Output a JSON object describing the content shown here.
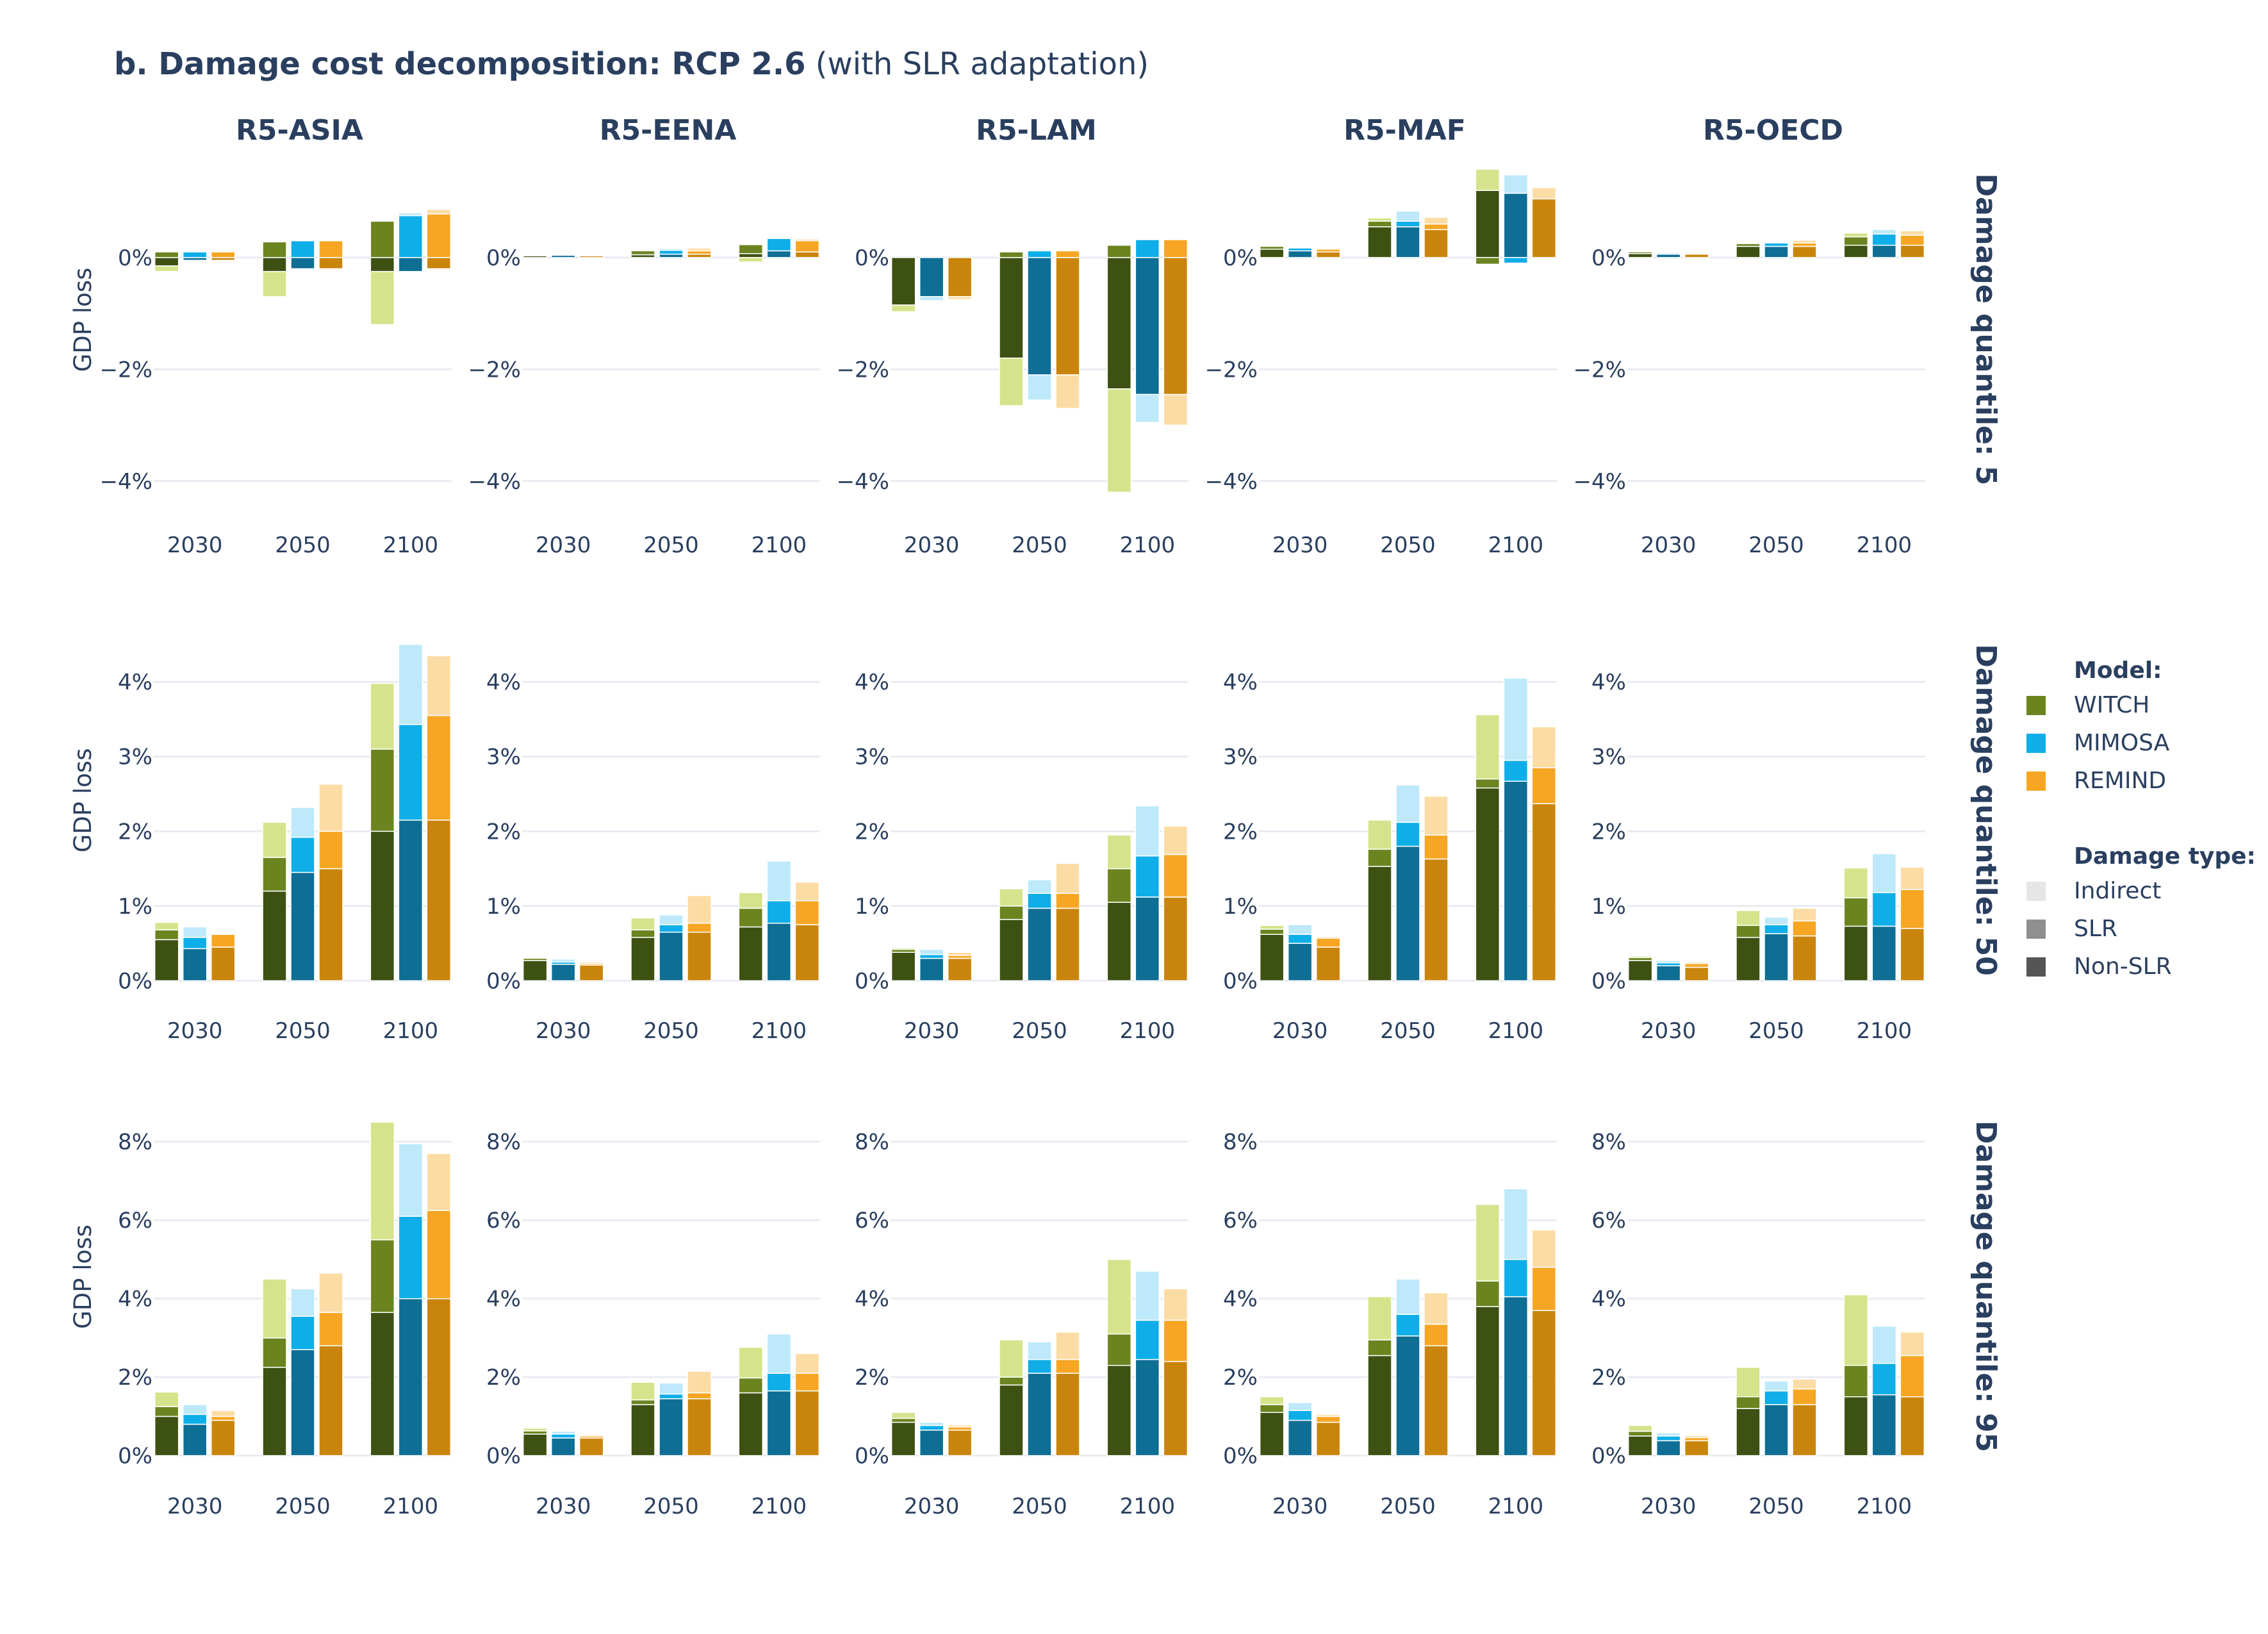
{
  "title": {
    "bold": "b. Damage cost decomposition: RCP 2.6",
    "rest": " (with SLR adaptation)"
  },
  "colors": {
    "WITCH": [
      "#3d5113",
      "#6b8420",
      "#d5e48c"
    ],
    "MIMOSA": [
      "#0e6e94",
      "#0eaee8",
      "#bde9fa"
    ],
    "REMIND": [
      "#c9850b",
      "#f6a623",
      "#fcdca5"
    ],
    "grid": "#e8ecf2",
    "text": "#2a3f5f",
    "legend_type": [
      "#e6e6e6",
      "#8f8f8f",
      "#555555"
    ]
  },
  "legend": {
    "model_title": "Model:",
    "models": [
      "WITCH",
      "MIMOSA",
      "REMIND"
    ],
    "type_title": "Damage type:",
    "types": [
      "Indirect",
      "SLR",
      "Non-SLR"
    ]
  },
  "chart_data": {
    "type": "bar",
    "stacked": true,
    "regions": [
      "R5-ASIA",
      "R5-EENA",
      "R5-LAM",
      "R5-MAF",
      "R5-OECD"
    ],
    "years": [
      "2030",
      "2050",
      "2100"
    ],
    "models": [
      "WITCH",
      "MIMOSA",
      "REMIND"
    ],
    "damage_types": [
      "Non-SLR",
      "SLR",
      "Indirect"
    ],
    "ylabel": "GDP loss",
    "rows": [
      {
        "label": "Damage quantile: 5",
        "yticks": [
          -4,
          -2,
          0
        ],
        "ylim": [
          -4.45,
          1.65
        ],
        "values": {
          "R5-ASIA": [
            [
              [
                -0.15,
                0.1,
                -0.1
              ],
              [
                -0.05,
                0.1,
                0
              ],
              [
                -0.05,
                0.1,
                0
              ]
            ],
            [
              [
                -0.25,
                0.28,
                -0.45
              ],
              [
                -0.2,
                0.3,
                0
              ],
              [
                -0.2,
                0.3,
                0
              ]
            ],
            [
              [
                -0.25,
                0.65,
                -0.95
              ],
              [
                -0.25,
                0.75,
                0.05
              ],
              [
                -0.2,
                0.78,
                0.08
              ]
            ]
          ],
          "R5-EENA": [
            [
              [
                0.03,
                0,
                0
              ],
              [
                0.04,
                0,
                0
              ],
              [
                0.03,
                0,
                0
              ]
            ],
            [
              [
                0.05,
                0.07,
                0
              ],
              [
                0.06,
                0.07,
                0.03
              ],
              [
                0.06,
                0.06,
                0.05
              ]
            ],
            [
              [
                0.07,
                0.16,
                -0.08
              ],
              [
                0.12,
                0.22,
                0
              ],
              [
                0.1,
                0.2,
                0.03
              ]
            ]
          ],
          "R5-LAM": [
            [
              [
                -0.85,
                0,
                -0.12
              ],
              [
                -0.7,
                0,
                -0.07
              ],
              [
                -0.7,
                0,
                -0.05
              ]
            ],
            [
              [
                -1.8,
                0.1,
                -0.85
              ],
              [
                -2.1,
                0.12,
                -0.45
              ],
              [
                -2.1,
                0.12,
                -0.6
              ]
            ],
            [
              [
                -2.35,
                0.22,
                -1.85
              ],
              [
                -2.45,
                0.32,
                -0.5
              ],
              [
                -2.45,
                0.32,
                -0.55
              ]
            ]
          ],
          "R5-MAF": [
            [
              [
                0.15,
                0.05,
                0
              ],
              [
                0.12,
                0.05,
                0
              ],
              [
                0.1,
                0.05,
                0.02
              ]
            ],
            [
              [
                0.55,
                0.1,
                0.06
              ],
              [
                0.55,
                0.1,
                0.18
              ],
              [
                0.5,
                0.1,
                0.12
              ]
            ],
            [
              [
                1.2,
                -0.12,
                0.38
              ],
              [
                1.15,
                -0.1,
                0.33
              ],
              [
                1.05,
                0,
                0.2
              ]
            ]
          ],
          "R5-OECD": [
            [
              [
                0.07,
                0.03,
                0
              ],
              [
                0.06,
                0.02,
                0
              ],
              [
                0.06,
                0.02,
                0.01
              ]
            ],
            [
              [
                0.2,
                0.05,
                0.02
              ],
              [
                0.2,
                0.06,
                0
              ],
              [
                0.2,
                0.06,
                0.05
              ]
            ],
            [
              [
                0.22,
                0.15,
                0.07
              ],
              [
                0.22,
                0.2,
                0.08
              ],
              [
                0.22,
                0.18,
                0.08
              ]
            ]
          ]
        }
      },
      {
        "label": "Damage quantile: 50",
        "yticks": [
          0,
          1,
          2,
          3,
          4
        ],
        "ylim": [
          -0.15,
          4.55
        ],
        "values": {
          "R5-ASIA": [
            [
              [
                0.55,
                0.13,
                0.1
              ],
              [
                0.43,
                0.15,
                0.14
              ],
              [
                0.45,
                0.17,
                0
              ]
            ],
            [
              [
                1.2,
                0.45,
                0.47
              ],
              [
                1.45,
                0.47,
                0.4
              ],
              [
                1.5,
                0.5,
                0.63
              ]
            ],
            [
              [
                2.0,
                1.1,
                0.88
              ],
              [
                2.15,
                1.28,
                1.07
              ],
              [
                2.15,
                1.4,
                0.8
              ]
            ]
          ],
          "R5-EENA": [
            [
              [
                0.27,
                0.03,
                0
              ],
              [
                0.22,
                0.03,
                0.04
              ],
              [
                0.21,
                0.02,
                0.02
              ]
            ],
            [
              [
                0.58,
                0.1,
                0.16
              ],
              [
                0.65,
                0.1,
                0.13
              ],
              [
                0.65,
                0.12,
                0.37
              ]
            ],
            [
              [
                0.72,
                0.25,
                0.21
              ],
              [
                0.77,
                0.3,
                0.53
              ],
              [
                0.75,
                0.32,
                0.25
              ]
            ]
          ],
          "R5-LAM": [
            [
              [
                0.38,
                0.04,
                0.02
              ],
              [
                0.3,
                0.05,
                0.07
              ],
              [
                0.3,
                0.04,
                0.04
              ]
            ],
            [
              [
                0.82,
                0.18,
                0.23
              ],
              [
                0.97,
                0.2,
                0.18
              ],
              [
                0.97,
                0.2,
                0.4
              ]
            ],
            [
              [
                1.05,
                0.45,
                0.45
              ],
              [
                1.12,
                0.55,
                0.67
              ],
              [
                1.12,
                0.57,
                0.38
              ]
            ]
          ],
          "R5-MAF": [
            [
              [
                0.62,
                0.07,
                0.05
              ],
              [
                0.5,
                0.12,
                0.13
              ],
              [
                0.45,
                0.12,
                0.02
              ]
            ],
            [
              [
                1.53,
                0.23,
                0.39
              ],
              [
                1.8,
                0.32,
                0.5
              ],
              [
                1.63,
                0.32,
                0.52
              ]
            ],
            [
              [
                2.58,
                0.12,
                0.86
              ],
              [
                2.67,
                0.28,
                1.1
              ],
              [
                2.37,
                0.48,
                0.55
              ]
            ]
          ],
          "R5-OECD": [
            [
              [
                0.27,
                0.04,
                0.02
              ],
              [
                0.2,
                0.04,
                0.03
              ],
              [
                0.18,
                0.05,
                0.02
              ]
            ],
            [
              [
                0.58,
                0.16,
                0.2
              ],
              [
                0.63,
                0.12,
                0.1
              ],
              [
                0.6,
                0.2,
                0.17
              ]
            ],
            [
              [
                0.73,
                0.38,
                0.4
              ],
              [
                0.73,
                0.45,
                0.52
              ],
              [
                0.7,
                0.52,
                0.3
              ]
            ]
          ]
        }
      },
      {
        "label": "Damage quantile: 95",
        "yticks": [
          0,
          2,
          4,
          6,
          8
        ],
        "ylim": [
          -0.3,
          8.6
        ],
        "values": {
          "R5-ASIA": [
            [
              [
                1.0,
                0.25,
                0.37
              ],
              [
                0.8,
                0.25,
                0.25
              ],
              [
                0.9,
                0.1,
                0.15
              ]
            ],
            [
              [
                2.25,
                0.75,
                1.5
              ],
              [
                2.7,
                0.85,
                0.7
              ],
              [
                2.8,
                0.85,
                1.0
              ]
            ],
            [
              [
                3.65,
                1.85,
                3.0
              ],
              [
                4.0,
                2.1,
                1.85
              ],
              [
                4.0,
                2.25,
                1.45
              ]
            ]
          ],
          "R5-EENA": [
            [
              [
                0.55,
                0.08,
                0.07
              ],
              [
                0.45,
                0.1,
                0.07
              ],
              [
                0.45,
                0.05,
                0.03
              ]
            ],
            [
              [
                1.3,
                0.12,
                0.45
              ],
              [
                1.45,
                0.12,
                0.28
              ],
              [
                1.45,
                0.15,
                0.55
              ]
            ],
            [
              [
                1.6,
                0.38,
                0.78
              ],
              [
                1.65,
                0.45,
                1.0
              ],
              [
                1.65,
                0.45,
                0.5
              ]
            ]
          ],
          "R5-LAM": [
            [
              [
                0.85,
                0.1,
                0.15
              ],
              [
                0.65,
                0.12,
                0.08
              ],
              [
                0.65,
                0.08,
                0.05
              ]
            ],
            [
              [
                1.8,
                0.2,
                0.95
              ],
              [
                2.1,
                0.35,
                0.45
              ],
              [
                2.1,
                0.35,
                0.7
              ]
            ],
            [
              [
                2.3,
                0.8,
                1.9
              ],
              [
                2.45,
                1.0,
                1.25
              ],
              [
                2.4,
                1.05,
                0.8
              ]
            ]
          ],
          "R5-MAF": [
            [
              [
                1.1,
                0.2,
                0.2
              ],
              [
                0.9,
                0.25,
                0.2
              ],
              [
                0.85,
                0.15,
                0.05
              ]
            ],
            [
              [
                2.55,
                0.4,
                1.1
              ],
              [
                3.05,
                0.55,
                0.9
              ],
              [
                2.8,
                0.55,
                0.8
              ]
            ],
            [
              [
                3.8,
                0.65,
                1.95
              ],
              [
                4.05,
                0.95,
                1.8
              ],
              [
                3.7,
                1.1,
                0.95
              ]
            ]
          ],
          "R5-OECD": [
            [
              [
                0.5,
                0.12,
                0.15
              ],
              [
                0.38,
                0.12,
                0.08
              ],
              [
                0.38,
                0.08,
                0.05
              ]
            ],
            [
              [
                1.2,
                0.3,
                0.75
              ],
              [
                1.3,
                0.35,
                0.25
              ],
              [
                1.3,
                0.4,
                0.25
              ]
            ],
            [
              [
                1.5,
                0.8,
                1.8
              ],
              [
                1.55,
                0.8,
                0.95
              ],
              [
                1.5,
                1.05,
                0.6
              ]
            ]
          ]
        }
      }
    ]
  }
}
